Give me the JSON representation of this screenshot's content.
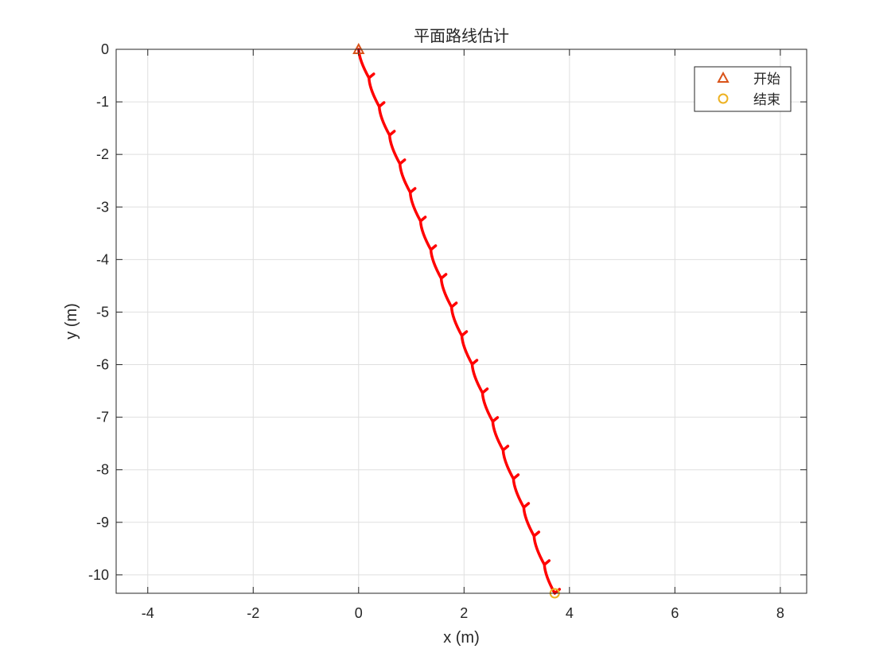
{
  "chart_data": {
    "type": "line",
    "title": "平面路线估计",
    "xlabel": "x (m)",
    "ylabel": "y (m)",
    "xlim": [
      -4.6,
      8.5
    ],
    "ylim": [
      -10.35,
      0
    ],
    "xticks": [
      -4,
      -2,
      0,
      2,
      4,
      6,
      8
    ],
    "xtick_labels": [
      "-4",
      "-2",
      "0",
      "2",
      "4",
      "6",
      "8"
    ],
    "yticks": [
      0,
      -1,
      -2,
      -3,
      -4,
      -5,
      -6,
      -7,
      -8,
      -9,
      -10
    ],
    "ytick_labels": [
      "0",
      "-1",
      "-2",
      "-3",
      "-4",
      "-5",
      "-6",
      "-7",
      "-8",
      "-9",
      "-10"
    ],
    "grid": true,
    "legend_position": "top-right",
    "series": [
      {
        "style": "line",
        "color": "#ff0000",
        "steps": {
          "start": [
            0,
            0
          ],
          "end": [
            3.72,
            -10.35
          ],
          "count": 19
        }
      },
      {
        "name": "开始",
        "style": "marker",
        "marker": "triangle",
        "color": "#d95319",
        "points": [
          [
            0,
            0
          ]
        ]
      },
      {
        "name": "结束",
        "style": "marker",
        "marker": "circle",
        "color": "#edb120",
        "points": [
          [
            3.72,
            -10.35
          ]
        ]
      }
    ]
  }
}
